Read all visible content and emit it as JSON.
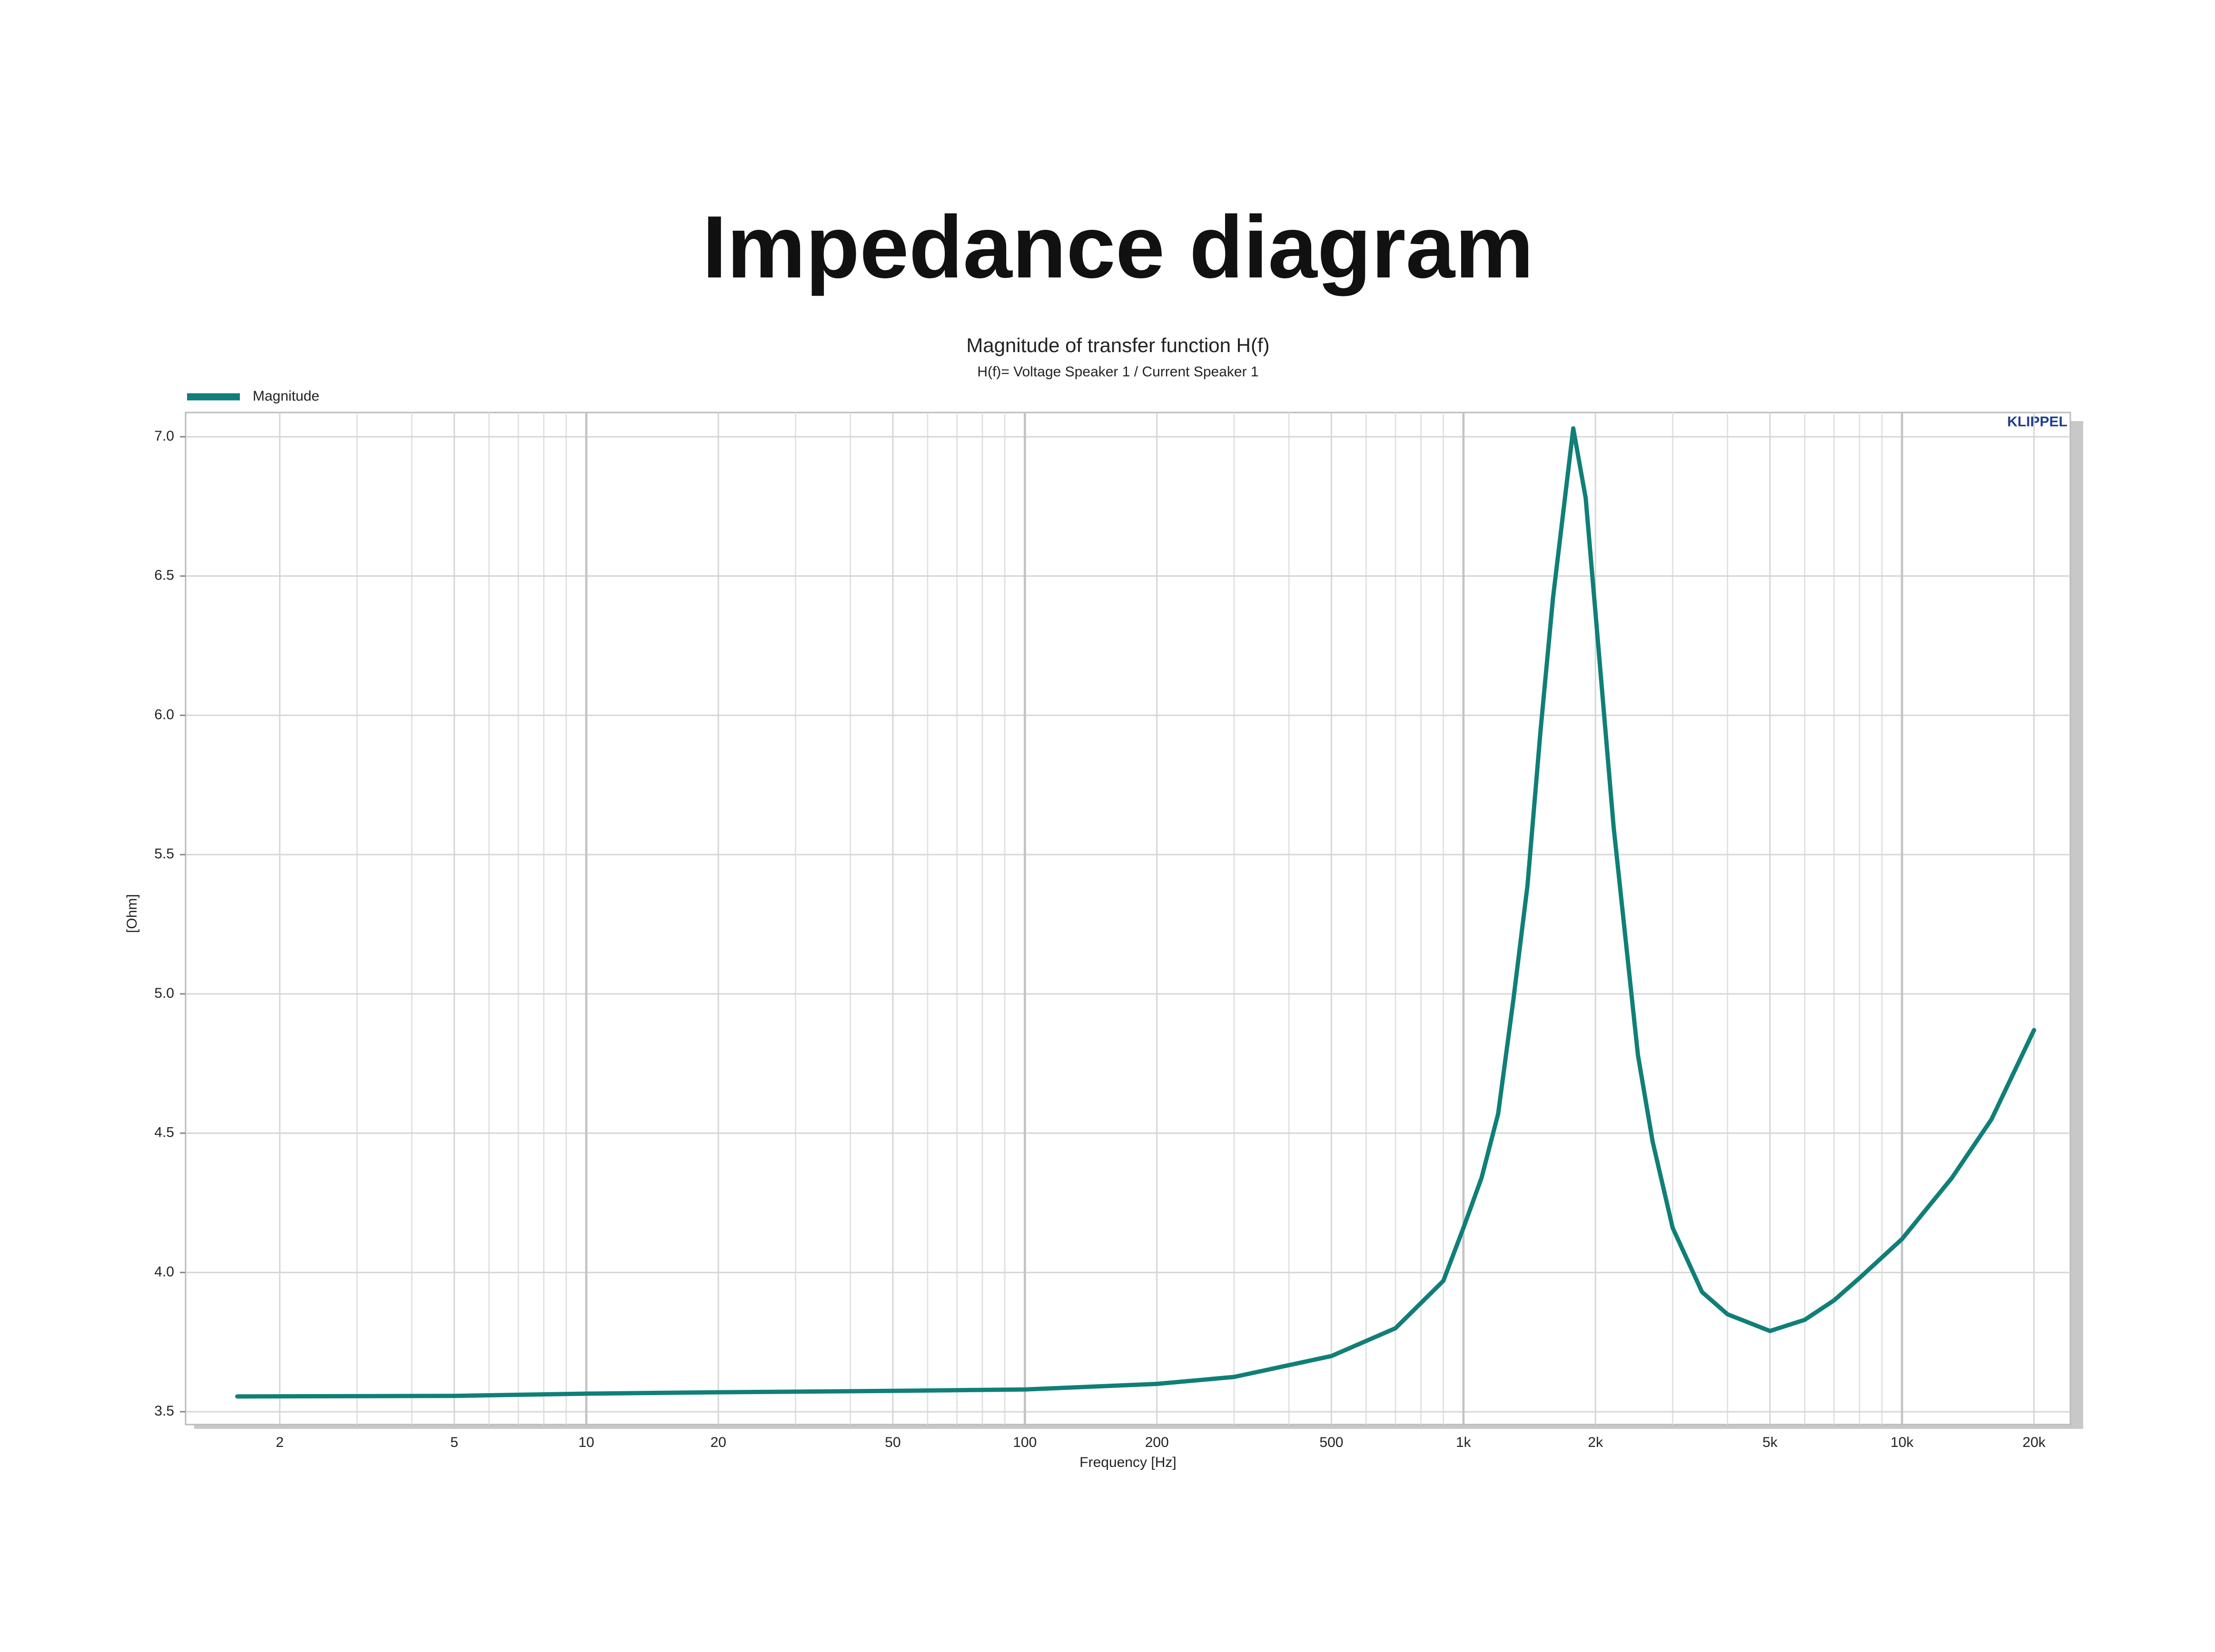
{
  "heading": "Impedance diagram",
  "chart_data": {
    "type": "line",
    "title": "Magnitude of transfer function H(f)",
    "subtitle": "H(f)= Voltage Speaker 1 / Current Speaker 1",
    "watermark": "KLIPPEL",
    "x_label": "Frequency [Hz]",
    "y_label": "[Ohm]",
    "x_scale": "log",
    "grid": true,
    "legend": "top-left",
    "x": [
      1.6,
      5,
      10,
      20,
      50,
      100,
      200,
      300,
      500,
      700,
      900,
      1000,
      1100,
      1200,
      1300,
      1400,
      1500,
      1600,
      1780,
      1900,
      2000,
      2200,
      2500,
      2700,
      3000,
      3500,
      4000,
      5000,
      6000,
      7000,
      8000,
      10000,
      13000,
      16000,
      20000
    ],
    "series": [
      {
        "name": "Magnitude",
        "color": "#0f7f78",
        "values": [
          3.555,
          3.557,
          3.565,
          3.57,
          3.575,
          3.58,
          3.6,
          3.625,
          3.7,
          3.8,
          3.97,
          4.16,
          4.34,
          4.57,
          4.98,
          5.39,
          5.95,
          6.42,
          7.03,
          6.78,
          6.37,
          5.6,
          4.78,
          4.47,
          4.16,
          3.93,
          3.85,
          3.79,
          3.83,
          3.9,
          3.98,
          4.12,
          4.34,
          4.55,
          4.87
        ]
      }
    ],
    "xlim": [
      1.22,
      24200
    ],
    "ylim": [
      3.454,
      7.087
    ],
    "xticks": [
      2,
      5,
      10,
      20,
      50,
      100,
      200,
      500,
      {
        "value": 1000,
        "label": "1k"
      },
      {
        "value": 2000,
        "label": "2k"
      },
      {
        "value": 5000,
        "label": "5k"
      },
      {
        "value": 10000,
        "label": "10k"
      },
      {
        "value": 20000,
        "label": "20k"
      }
    ],
    "xminor_ticks": [
      3,
      4,
      6,
      7,
      8,
      9,
      30,
      40,
      60,
      70,
      80,
      90,
      300,
      400,
      600,
      700,
      800,
      900,
      3000,
      4000,
      6000,
      7000,
      8000,
      9000
    ],
    "yticks": [
      3.5,
      {
        "value": 4,
        "label": "4.0"
      },
      4.5,
      {
        "value": 5,
        "label": "5.0"
      },
      5.5,
      {
        "value": 6,
        "label": "6.0"
      },
      6.5,
      {
        "value": 7,
        "label": "7.0"
      }
    ]
  }
}
